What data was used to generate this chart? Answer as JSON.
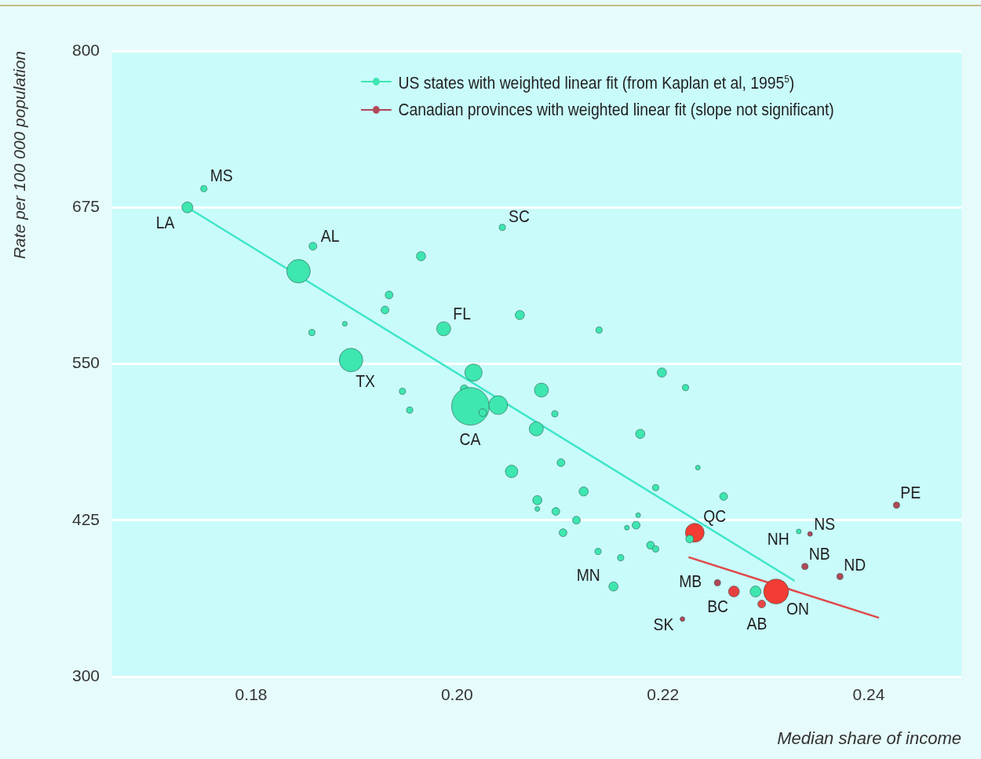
{
  "chart_data": {
    "type": "bubble",
    "xlabel": "Median share of income",
    "ylabel": "Rate per 100 000 population",
    "xlim": [
      0.1665,
      0.249
    ],
    "xticks": [
      0.18,
      {
        "value": 0.2,
        "label": "0.20"
      },
      0.22,
      0.24
    ],
    "ylim": [
      300,
      800
    ],
    "yticks": [
      300,
      425,
      550,
      675,
      800
    ],
    "grid": "y",
    "legend": "top right",
    "series": [
      {
        "name": "US states with weighted linear fit (from Kaplan et al, 1995$^{5}$)",
        "color": "#3ee6b0",
        "x": [
          0.1754,
          0.1738,
          0.186,
          0.1846,
          0.1965,
          0.1934,
          0.193,
          0.1891,
          0.1859,
          0.1987,
          0.1897,
          0.1947,
          0.1954,
          0.2044,
          0.2061,
          0.2138,
          0.2016,
          0.2007,
          0.2013,
          0.204,
          0.2025,
          0.2082,
          0.2095,
          0.2077,
          0.2053,
          0.2101,
          0.2123,
          0.2078,
          0.2078,
          0.2096,
          0.2116,
          0.2103,
          0.2137,
          0.2159,
          0.2199,
          0.2222,
          0.2178,
          0.2193,
          0.2176,
          0.2174,
          0.2165,
          0.2188,
          0.2193,
          0.2234,
          0.2259,
          0.2152,
          0.2226,
          0.2332,
          0.229
        ],
        "values": [
          690,
          675,
          644,
          624,
          636,
          605,
          593,
          582,
          575,
          578,
          553,
          528,
          513,
          659,
          589,
          577,
          543,
          530,
          516,
          517,
          511,
          529,
          510,
          498,
          464,
          471,
          448,
          441,
          434,
          432,
          425,
          415,
          400,
          395,
          543,
          531,
          494,
          451,
          429,
          421,
          419,
          405,
          402,
          467,
          444,
          372,
          410,
          416,
          368
        ],
        "sizes": [
          0.028,
          0.085,
          0.043,
          0.39,
          0.06,
          0.043,
          0.043,
          0.016,
          0.028,
          0.14,
          0.39,
          0.028,
          0.028,
          0.028,
          0.06,
          0.028,
          0.21,
          0.043,
          1,
          0.25,
          0.043,
          0.14,
          0.028,
          0.14,
          0.11,
          0.043,
          0.06,
          0.06,
          0.016,
          0.043,
          0.043,
          0.043,
          0.028,
          0.028,
          0.06,
          0.028,
          0.06,
          0.028,
          0.016,
          0.043,
          0.016,
          0.043,
          0.028,
          0.016,
          0.043,
          0.06,
          0.043,
          0.016,
          0.085
        ]
      },
      {
        "name": "Canadian provinces with weighted linear fit (slope not significant)",
        "color": "#b04858",
        "x": [
          0.2231,
          0.231,
          0.2296,
          0.2269,
          0.2253,
          0.2219,
          0.2343,
          0.2338,
          0.2372,
          0.2427
        ],
        "values": [
          415,
          368,
          358,
          368,
          375,
          346,
          414,
          388,
          380,
          437
        ],
        "sizes": [
          0.25,
          0.44,
          0.043,
          0.085,
          0.028,
          0.016,
          0.016,
          0.028,
          0.028,
          0.028
        ],
        "colors": [
          "#f23c34",
          "#f23c34",
          "#e84848",
          "#e84040",
          "#b04858",
          "#b04858",
          "#b04858",
          "#b04858",
          "#b04858",
          "#b04858"
        ]
      },
      {
        "type": "line",
        "color": "#3ee6c8",
        "x": [
          0.1738,
          0.2328
        ],
        "values": [
          675,
          376.5
        ]
      },
      {
        "type": "line",
        "color": "#e04848",
        "x": [
          0.2225,
          0.241
        ],
        "values": [
          395.4,
          347
        ]
      }
    ],
    "annotations": [
      {
        "text": "MS",
        "x": 0.1754,
        "y": 690
      },
      {
        "text": "LA",
        "x": 0.1738,
        "y": 675
      },
      {
        "text": "AL",
        "x": 0.186,
        "y": 644
      },
      {
        "text": "SC",
        "x": 0.2044,
        "y": 659
      },
      {
        "text": "FL",
        "x": 0.1987,
        "y": 578
      },
      {
        "text": "TX",
        "x": 0.1897,
        "y": 553
      },
      {
        "text": "CA",
        "x": 0.2013,
        "y": 516
      },
      {
        "text": "MN",
        "x": 0.2152,
        "y": 372
      },
      {
        "text": "QC",
        "x": 0.2231,
        "y": 415
      },
      {
        "text": "NH",
        "x": 0.2332,
        "y": 416
      },
      {
        "text": "NS",
        "x": 0.2343,
        "y": 414
      },
      {
        "text": "NB",
        "x": 0.2338,
        "y": 388
      },
      {
        "text": "ND",
        "x": 0.2372,
        "y": 380
      },
      {
        "text": "PE",
        "x": 0.2427,
        "y": 437
      },
      {
        "text": "MB",
        "x": 0.2253,
        "y": 375
      },
      {
        "text": "BC",
        "x": 0.2269,
        "y": 368
      },
      {
        "text": "AB",
        "x": 0.2296,
        "y": 358
      },
      {
        "text": "ON",
        "x": 0.231,
        "y": 368
      },
      {
        "text": "SK",
        "x": 0.2219,
        "y": 346
      }
    ]
  }
}
